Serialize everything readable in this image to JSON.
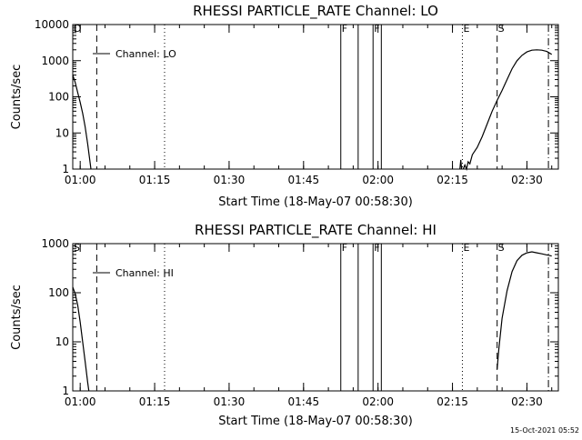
{
  "footer": {
    "timestamp": "15-Oct-2021 05:52"
  },
  "chart_data": [
    {
      "type": "line",
      "title": "RHESSI PARTICLE_RATE Channel: LO",
      "xlabel": "Start Time (18-May-07 00:58:30)",
      "ylabel": "Counts/sec",
      "legend": {
        "label": "Channel: LO",
        "placement": "top-left"
      },
      "yscale": "log",
      "ylim": [
        1,
        10000
      ],
      "yticks": [
        "1",
        "10",
        "100",
        "1000",
        "10000"
      ],
      "xlim": [
        "00:58:30",
        "02:36:20"
      ],
      "xticks": [
        "01:00",
        "01:15",
        "01:30",
        "01:45",
        "02:00",
        "02:15",
        "02:30"
      ],
      "series": [
        {
          "segments": [
            [
              [
                "00:58:30",
                400
              ],
              [
                "00:59:00",
                250
              ],
              [
                "00:59:30",
                130
              ],
              [
                "01:00:00",
                70
              ],
              [
                "01:00:30",
                35
              ],
              [
                "01:01:00",
                15
              ],
              [
                "01:01:30",
                5
              ],
              [
                "01:02:00",
                1.5
              ],
              [
                "01:02:10",
                1
              ]
            ],
            [
              [
                "02:16:30",
                1
              ],
              [
                "02:16:40",
                1.8
              ],
              [
                "02:16:50",
                1
              ]
            ],
            [
              [
                "02:17:10",
                1
              ],
              [
                "02:17:30",
                1.3
              ],
              [
                "02:17:50",
                1
              ],
              [
                "02:18:10",
                1.6
              ],
              [
                "02:18:30",
                1.4
              ],
              [
                "02:19:00",
                2.5
              ],
              [
                "02:20:00",
                4
              ],
              [
                "02:21:00",
                8
              ],
              [
                "02:22:00",
                18
              ],
              [
                "02:23:00",
                40
              ],
              [
                "02:24:00",
                80
              ],
              [
                "02:25:00",
                150
              ],
              [
                "02:26:00",
                300
              ],
              [
                "02:27:00",
                600
              ],
              [
                "02:28:00",
                1000
              ],
              [
                "02:29:00",
                1400
              ],
              [
                "02:30:00",
                1750
              ],
              [
                "02:31:00",
                1950
              ],
              [
                "02:32:00",
                2000
              ],
              [
                "02:33:00",
                1950
              ],
              [
                "02:34:00",
                1800
              ],
              [
                "02:35:00",
                1500
              ]
            ]
          ]
        }
      ],
      "markers": [
        {
          "time": "01:03:20",
          "style": "dashed",
          "label": ""
        },
        {
          "time": "01:17:00",
          "style": "dotted",
          "label": ""
        },
        {
          "time": "01:52:30",
          "style": "solid",
          "label": "F"
        },
        {
          "time": "01:56:00",
          "style": "solid",
          "label": ""
        },
        {
          "time": "01:59:00",
          "style": "solid",
          "label": "F"
        },
        {
          "time": "02:00:40",
          "style": "solid",
          "label": ""
        },
        {
          "time": "02:17:00",
          "style": "dotted",
          "label": "E"
        },
        {
          "time": "02:24:00",
          "style": "dashed",
          "label": "S"
        },
        {
          "time": "02:34:20",
          "style": "dashdot",
          "label": ""
        }
      ],
      "corner_flag": "D"
    },
    {
      "type": "line",
      "title": "RHESSI PARTICLE_RATE Channel: HI",
      "xlabel": "Start Time (18-May-07 00:58:30)",
      "ylabel": "Counts/sec",
      "legend": {
        "label": "Channel: HI",
        "placement": "top-left"
      },
      "yscale": "log",
      "ylim": [
        1,
        1000
      ],
      "yticks": [
        "1",
        "10",
        "100",
        "1000"
      ],
      "xlim": [
        "00:58:30",
        "02:36:20"
      ],
      "xticks": [
        "01:00",
        "01:15",
        "01:30",
        "01:45",
        "02:00",
        "02:15",
        "02:30"
      ],
      "series": [
        {
          "segments": [
            [
              [
                "00:58:30",
                130
              ],
              [
                "00:59:00",
                95
              ],
              [
                "00:59:30",
                55
              ],
              [
                "01:00:00",
                25
              ],
              [
                "01:00:30",
                10
              ],
              [
                "01:01:00",
                4
              ],
              [
                "01:01:30",
                1.5
              ],
              [
                "01:01:45",
                1
              ]
            ],
            [
              [
                "02:24:00",
                2.8
              ],
              [
                "02:24:20",
                7
              ],
              [
                "02:25:00",
                30
              ],
              [
                "02:26:00",
                110
              ],
              [
                "02:27:00",
                270
              ],
              [
                "02:28:00",
                450
              ],
              [
                "02:29:00",
                580
              ],
              [
                "02:30:00",
                650
              ],
              [
                "02:31:00",
                680
              ],
              [
                "02:32:00",
                650
              ],
              [
                "02:33:00",
                620
              ],
              [
                "02:34:00",
                590
              ],
              [
                "02:35:00",
                560
              ]
            ]
          ]
        }
      ],
      "markers": [
        {
          "time": "01:03:20",
          "style": "dashed",
          "label": ""
        },
        {
          "time": "01:17:00",
          "style": "dotted",
          "label": ""
        },
        {
          "time": "01:52:30",
          "style": "solid",
          "label": "F"
        },
        {
          "time": "01:56:00",
          "style": "solid",
          "label": ""
        },
        {
          "time": "01:59:00",
          "style": "solid",
          "label": "F"
        },
        {
          "time": "02:00:40",
          "style": "solid",
          "label": ""
        },
        {
          "time": "02:17:00",
          "style": "dotted",
          "label": "E"
        },
        {
          "time": "02:24:00",
          "style": "dashed",
          "label": "S"
        },
        {
          "time": "02:34:20",
          "style": "dashdot",
          "label": ""
        }
      ],
      "corner_flag": "S"
    }
  ]
}
